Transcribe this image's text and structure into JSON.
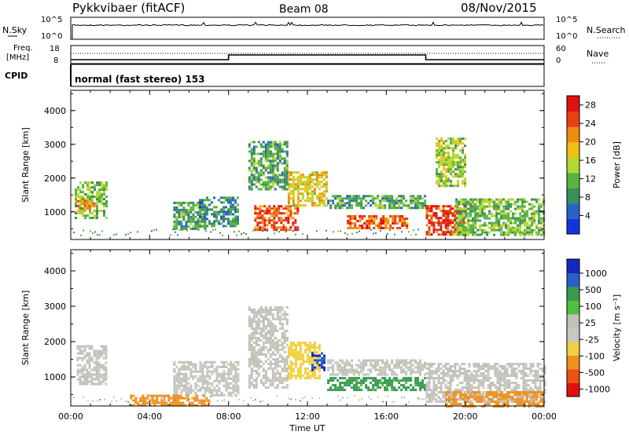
{
  "header": {
    "station": "Pykkvibaer (fitACF)",
    "beam": "Beam 08",
    "date": "08/Nov/2015"
  },
  "noise_panel": {
    "left_label": "N.Sky",
    "right_label": "N.Search",
    "ticks_left": [
      "10^5",
      "10^0"
    ],
    "ticks_right": [
      "10^5",
      "10^0"
    ]
  },
  "freq_panel": {
    "left_label_1": "Freq.",
    "left_label_2": "[MHz]",
    "right_label": "Nave",
    "ticks_left": [
      "18",
      "8"
    ],
    "ticks_right": [
      "60",
      "0"
    ],
    "freq_segments": [
      {
        "start": 0,
        "end": 8,
        "value": 10
      },
      {
        "start": 8,
        "end": 18,
        "value": 13
      },
      {
        "start": 18,
        "end": 24,
        "value": 10
      }
    ]
  },
  "cpid_panel": {
    "label": "CPID",
    "text": "normal (fast stereo) 153"
  },
  "colors": {
    "power": [
      "#1433e0",
      "#2a63c8",
      "#3b8f5a",
      "#58b440",
      "#b3d832",
      "#f0c010",
      "#f08a10",
      "#e84010",
      "#e01010"
    ],
    "velocity": [
      "#e01010",
      "#f05010",
      "#f09020",
      "#f0d040",
      "#c8c8c0",
      "#c0c0b8",
      "#50c040",
      "#3a9a50",
      "#2a5fc8",
      "#1428c0"
    ]
  },
  "chart_data": [
    {
      "type": "heatmap",
      "name": "power",
      "xlabel": "",
      "ylabel": "Slant Range [km]",
      "xlim": [
        0,
        24
      ],
      "ylim": [
        180,
        4600
      ],
      "yticks": [
        1000,
        2000,
        3000,
        4000
      ],
      "colorbar": {
        "label": "Power [dB]",
        "ticks": [
          "4",
          "8",
          "12",
          "16",
          "20",
          "24",
          "28"
        ],
        "range": [
          0,
          30
        ]
      },
      "regions": [
        {
          "t0": 0.2,
          "t1": 1.8,
          "r0": 800,
          "r1": 1900,
          "v": 12
        },
        {
          "t0": 0.3,
          "t1": 1.2,
          "r0": 1050,
          "r1": 1350,
          "v": 20
        },
        {
          "t0": 5.2,
          "t1": 6.8,
          "r0": 500,
          "r1": 1300,
          "v": 10
        },
        {
          "t0": 6.5,
          "t1": 8.5,
          "r0": 550,
          "r1": 1450,
          "v": 8
        },
        {
          "t0": 9.3,
          "t1": 11.5,
          "r0": 450,
          "r1": 1200,
          "v": 24
        },
        {
          "t0": 9.0,
          "t1": 11.0,
          "r0": 1700,
          "r1": 3100,
          "v": 10
        },
        {
          "t0": 11.0,
          "t1": 13.0,
          "r0": 1200,
          "r1": 2200,
          "v": 18
        },
        {
          "t0": 13.0,
          "t1": 18.0,
          "r0": 1100,
          "r1": 1500,
          "v": 10
        },
        {
          "t0": 14.0,
          "t1": 17.0,
          "r0": 500,
          "r1": 900,
          "v": 24
        },
        {
          "t0": 18.0,
          "t1": 20.0,
          "r0": 300,
          "r1": 1200,
          "v": 26
        },
        {
          "t0": 19.5,
          "t1": 24.0,
          "r0": 300,
          "r1": 1400,
          "v": 12
        },
        {
          "t0": 18.5,
          "t1": 20.0,
          "r0": 1800,
          "r1": 3200,
          "v": 14
        }
      ]
    },
    {
      "type": "heatmap",
      "name": "velocity",
      "xlabel": "Time UT",
      "ylabel": "Slant Range [km]",
      "xlim": [
        0,
        24
      ],
      "ylim": [
        180,
        4600
      ],
      "xticks": [
        "00:00",
        "04:00",
        "08:00",
        "12:00",
        "16:00",
        "20:00",
        "00:00"
      ],
      "yticks": [
        1000,
        2000,
        3000,
        4000
      ],
      "colorbar": {
        "label": "Velocity [m s⁻¹]",
        "ticks": [
          "1000",
          "500",
          "100",
          "25",
          "-25",
          "-100",
          "-500",
          "-1000"
        ]
      },
      "regions": [
        {
          "t0": 0.3,
          "t1": 1.8,
          "r0": 800,
          "r1": 1900,
          "v": 0
        },
        {
          "t0": 5.2,
          "t1": 8.5,
          "r0": 500,
          "r1": 1450,
          "v": 0
        },
        {
          "t0": 3.0,
          "t1": 7.0,
          "r0": 200,
          "r1": 500,
          "v": -200
        },
        {
          "t0": 9.0,
          "t1": 11.0,
          "r0": 700,
          "r1": 3000,
          "v": 0
        },
        {
          "t0": 11.0,
          "t1": 12.6,
          "r0": 1000,
          "r1": 2000,
          "v": -50
        },
        {
          "t0": 12.2,
          "t1": 12.9,
          "r0": 1200,
          "r1": 1700,
          "v": 900
        },
        {
          "t0": 13.0,
          "t1": 18.0,
          "r0": 650,
          "r1": 1000,
          "v": 150
        },
        {
          "t0": 13.0,
          "t1": 18.0,
          "r0": 1100,
          "r1": 1500,
          "v": 0
        },
        {
          "t0": 18.0,
          "t1": 24.0,
          "r0": 300,
          "r1": 1400,
          "v": 0
        },
        {
          "t0": 19.0,
          "t1": 24.0,
          "r0": 200,
          "r1": 600,
          "v": -200
        }
      ]
    }
  ]
}
